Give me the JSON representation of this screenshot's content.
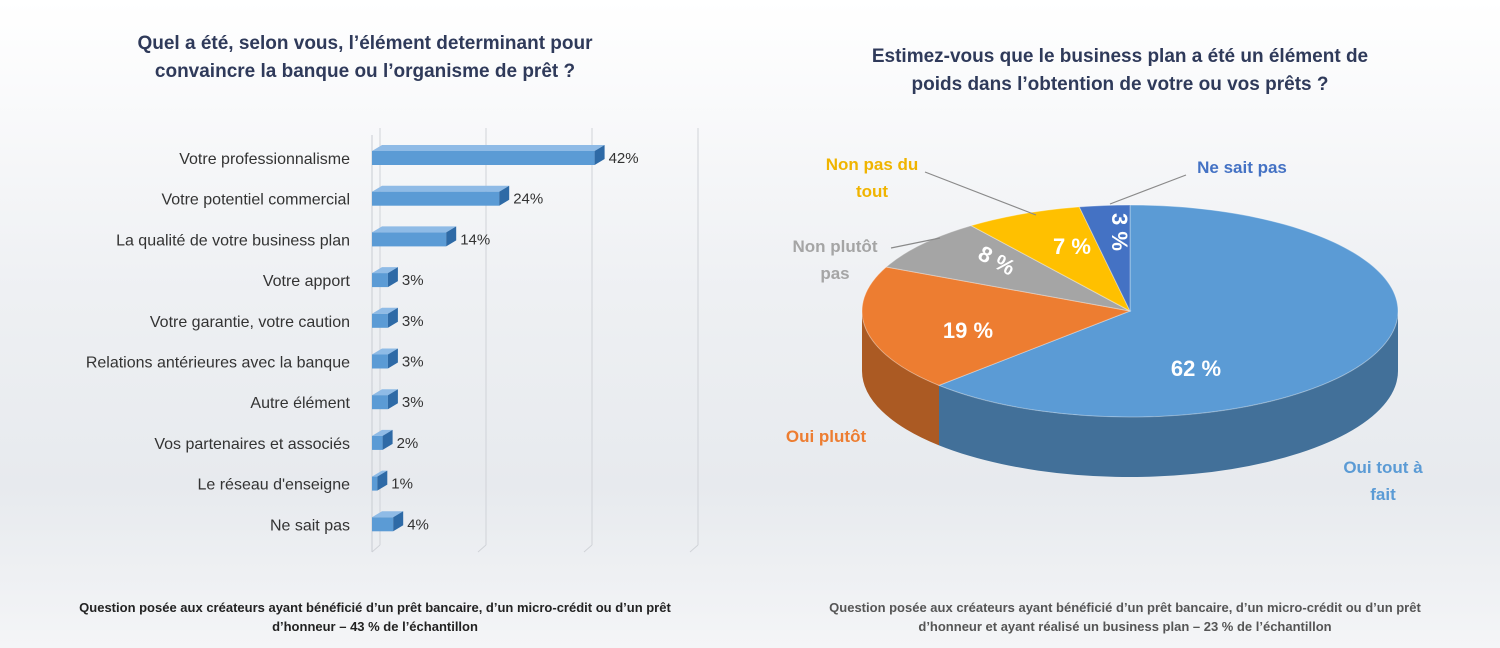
{
  "chart_data": [
    {
      "type": "bar",
      "orientation": "horizontal",
      "title_lines": [
        "Quel a été, selon vous, l’élément determinant pour",
        "convaincre la banque ou l’organisme de prêt ?"
      ],
      "categories": [
        "Votre professionnalisme",
        "Votre potentiel commercial",
        "La qualité de votre business plan",
        "Votre apport",
        "Votre garantie, votre caution",
        "Relations antérieures avec la banque",
        "Autre élément",
        "Vos partenaires et associés",
        "Le réseau d'enseigne",
        "Ne sait pas"
      ],
      "values": [
        42,
        24,
        14,
        3,
        3,
        3,
        3,
        2,
        1,
        4
      ],
      "value_labels": [
        "42%",
        "24%",
        "14%",
        "3%",
        "3%",
        "3%",
        "3%",
        "2%",
        "1%",
        "4%"
      ],
      "xlim": [
        0,
        60
      ],
      "grid": true,
      "color": "#5b9bd5",
      "note_lines": [
        "Question posée aux créateurs ayant bénéficié d’un prêt bancaire, d’un micro-crédit ou d’un prêt",
        "d’honneur – 43 % de l’échantillon"
      ]
    },
    {
      "type": "pie",
      "title_lines": [
        "Estimez-vous que le business plan a été un élément de",
        "poids dans l’obtention de votre ou vos prêts ?"
      ],
      "slices": [
        {
          "label": "Oui tout à fait",
          "label_lines": [
            "Oui tout à",
            "fait"
          ],
          "value": 62,
          "pct_label": "62 %",
          "color": "#5b9bd5",
          "label_color": "#5b9bd5"
        },
        {
          "label": "Oui plutôt",
          "label_lines": [
            "Oui plutôt"
          ],
          "value": 19,
          "pct_label": "19 %",
          "color": "#ed7d31",
          "label_color": "#ed7d31"
        },
        {
          "label": "Non plutôt pas",
          "label_lines": [
            "Non plutôt",
            "pas"
          ],
          "value": 8,
          "pct_label": "8 %",
          "color": "#a5a5a5",
          "label_color": "#a5a5a5"
        },
        {
          "label": "Non pas du tout",
          "label_lines": [
            "Non pas du",
            "tout"
          ],
          "value": 7,
          "pct_label": "7 %",
          "color": "#ffc000",
          "label_color": "#f0b400"
        },
        {
          "label": "Ne sait pas",
          "label_lines": [
            "Ne sait pas"
          ],
          "value": 3,
          "pct_label": "3 %",
          "color": "#4472c4",
          "label_color": "#4472c4"
        }
      ],
      "note_lines": [
        "Question posée aux créateurs ayant bénéficié d’un prêt bancaire, d’un micro-crédit ou d’un prêt",
        "d’honneur et ayant réalisé un business plan – 23 % de l’échantillon"
      ]
    }
  ]
}
